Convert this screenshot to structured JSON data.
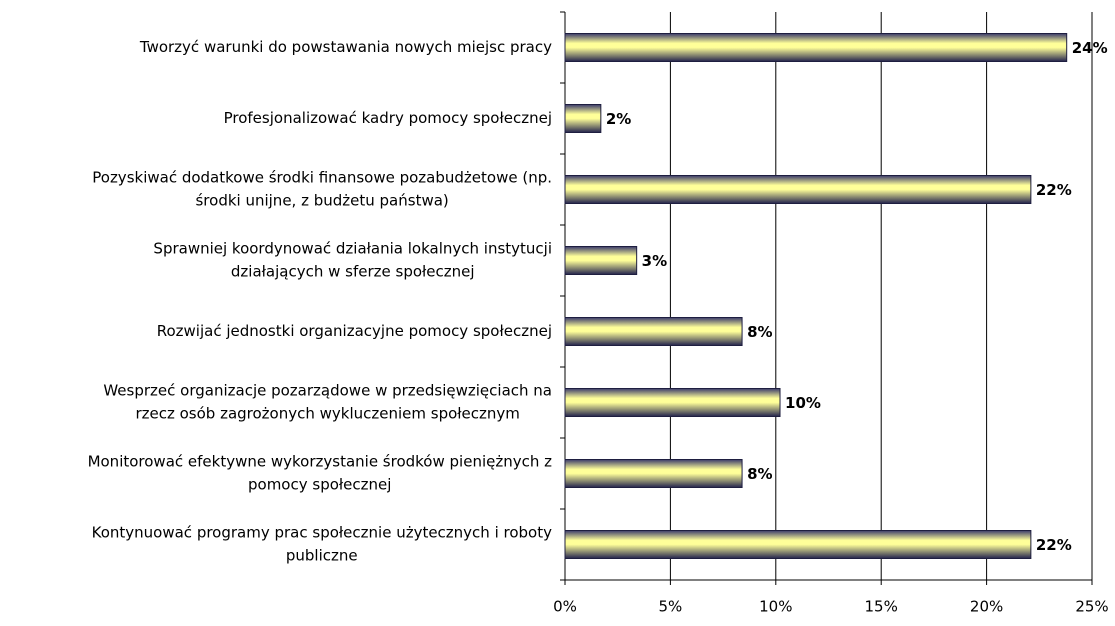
{
  "chart_data": {
    "type": "barh",
    "categories": [
      [
        "Tworzyć warunki do powstawania nowych miejsc pracy"
      ],
      [
        "Profesjonalizować kadry pomocy społecznej"
      ],
      [
        "Pozyskiwać dodatkowe środki finansowe pozabudżetowe (np.",
        "środki unijne, z budżetu państwa)"
      ],
      [
        "Sprawniej koordynować działania lokalnych instytucji",
        "działających w sferze społecznej"
      ],
      [
        "Rozwijać jednostki organizacyjne pomocy społecznej"
      ],
      [
        "Wesprzeć organizacje pozarządowe w przedsięwzięciach na",
        "rzecz osób zagrożonych wykluczeniem społecznym"
      ],
      [
        "Monitorować efektywne wykorzystanie środków pieniężnych z",
        "pomocy społecznej"
      ],
      [
        "Kontynuować programy prac społecznie użytecznych i roboty",
        "publiczne"
      ]
    ],
    "values": [
      23.8,
      1.7,
      22.1,
      3.4,
      8.4,
      10.2,
      8.4,
      22.1
    ],
    "value_labels": [
      "24%",
      "2%",
      "22%",
      "3%",
      "8%",
      "10%",
      "8%",
      "22%"
    ],
    "color": "#ffff99",
    "xlim": [
      0,
      25
    ],
    "xticks": [
      {
        "value": 0,
        "label": "0%"
      },
      {
        "value": 5,
        "label": "5%"
      },
      {
        "value": 10,
        "label": "10%"
      },
      {
        "value": 15,
        "label": "15%"
      },
      {
        "value": 20,
        "label": "20%"
      },
      {
        "value": 25,
        "label": "25%"
      }
    ],
    "grid": true
  }
}
